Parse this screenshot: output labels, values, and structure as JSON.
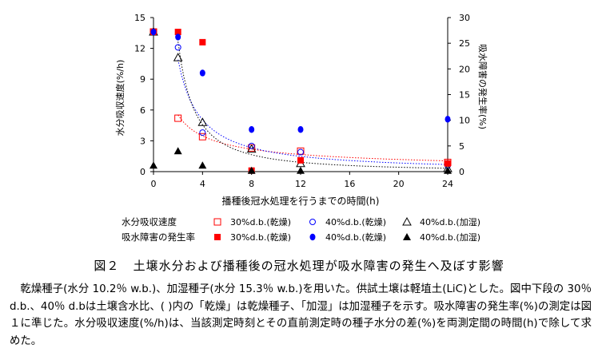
{
  "chart_data": {
    "type": "scatter",
    "xlabel": "播種後冠水処理を行うまでの時間(h)",
    "ylabel_left": "水分吸収速度(%/h)",
    "ylabel_right": "吸水障害の発生率(%)",
    "x_ticks": [
      "0",
      "4",
      "8",
      "12",
      "16",
      "20",
      "24"
    ],
    "xlim": [
      0,
      24
    ],
    "yleft_ticks": [
      "0",
      "3",
      "6",
      "9",
      "12",
      "15"
    ],
    "yleft_lim": [
      0,
      15
    ],
    "yright_ticks": [
      "0",
      "5",
      "10",
      "15",
      "20",
      "25",
      "30"
    ],
    "yright_lim": [
      0,
      30
    ],
    "legend_row_labels": [
      "水分吸収速度",
      "吸水障害の発生率"
    ],
    "series": [
      {
        "name": "30%d.b.(乾燥)",
        "group": "水分吸収速度",
        "axis": "left",
        "marker": "open-square",
        "trend": true,
        "x": [
          0,
          2,
          4,
          8,
          12,
          24
        ],
        "y": [
          13.6,
          5.2,
          3.4,
          2.3,
          2.0,
          0.9
        ]
      },
      {
        "name": "40%d.b.(乾燥)",
        "group": "水分吸収速度",
        "axis": "left",
        "marker": "open-circle",
        "trend": true,
        "x": [
          0,
          2,
          4,
          8,
          12,
          24
        ],
        "y": [
          13.6,
          12.1,
          3.8,
          2.5,
          1.9,
          0.6
        ]
      },
      {
        "name": "40%d.b.(加湿)",
        "group": "水分吸収速度",
        "axis": "left",
        "marker": "open-triangle",
        "trend": true,
        "x": [
          0,
          2,
          4,
          8,
          12,
          24
        ],
        "y": [
          13.6,
          11.1,
          4.8,
          2.2,
          0.8,
          0.3
        ]
      },
      {
        "name": "30%d.b.(乾燥)",
        "group": "吸水障害の発生率",
        "axis": "right",
        "marker": "filled-square",
        "trend": false,
        "x": [
          0,
          2,
          4,
          8,
          12,
          24
        ],
        "y": [
          27.2,
          27.2,
          25.2,
          0.2,
          2.2,
          1.6
        ]
      },
      {
        "name": "40%d.b.(乾燥)",
        "group": "吸水障害の発生率",
        "axis": "right",
        "marker": "filled-circle",
        "trend": false,
        "x": [
          0,
          2,
          4,
          8,
          12,
          24
        ],
        "y": [
          27.2,
          26.2,
          19.2,
          8.2,
          8.2,
          10.2
        ]
      },
      {
        "name": "40%d.b.(加湿)",
        "group": "吸水障害の発生率",
        "axis": "right",
        "marker": "filled-triangle",
        "trend": false,
        "x": [
          0,
          2,
          4,
          8,
          12,
          24
        ],
        "y": [
          1.2,
          4.0,
          1.2,
          0.2,
          0.2,
          0.2
        ]
      }
    ],
    "colors": {
      "red": "#ff0000",
      "blue": "#0000ff",
      "black": "#000000"
    }
  },
  "caption": {
    "number": "図２",
    "title": "土壌水分および播種後の冠水処理が吸水障害の発生へ及ぼす影響"
  },
  "description": "乾燥種子(水分 10.2％ w.b.)、加湿種子(水分 15.3％ w.b.)を用いた。供試土壌は軽埴土(LiC)とした。図中下段の 30％ d.b.、40％ d.bは土壌含水比、( )内の「乾燥」は乾燥種子、「加湿」は加湿種子を示す。吸水障害の発生率(%)の測定は図１に準じた。水分吸収速度(%/h)は、当該測定時刻とその直前測定時の種子水分の差(%)を両測定間の時間(h)で除して求めた。"
}
